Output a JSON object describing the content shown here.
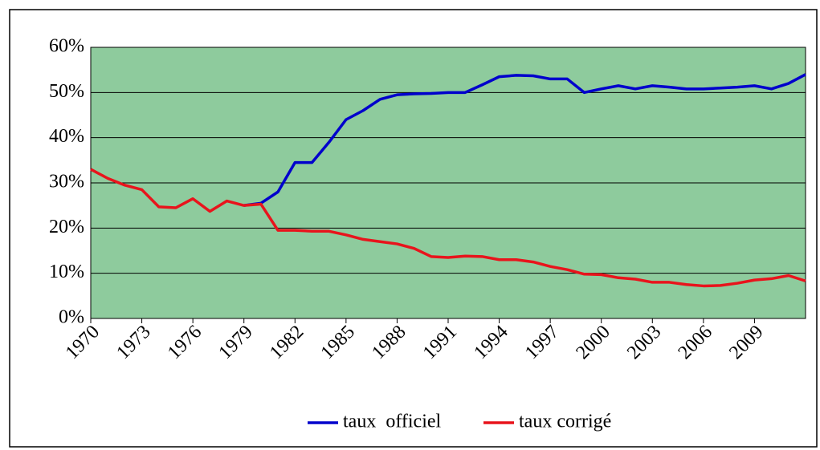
{
  "chart_data": {
    "type": "line",
    "x": [
      1970,
      1971,
      1972,
      1973,
      1974,
      1975,
      1976,
      1977,
      1978,
      1979,
      1980,
      1981,
      1982,
      1983,
      1984,
      1985,
      1986,
      1987,
      1988,
      1989,
      1990,
      1991,
      1992,
      1993,
      1994,
      1995,
      1996,
      1997,
      1998,
      1999,
      2000,
      2001,
      2002,
      2003,
      2004,
      2005,
      2006,
      2007,
      2008,
      2009,
      2010,
      2011,
      2012
    ],
    "series": [
      {
        "name": "taux  officiel",
        "color": "#0000cc",
        "values": [
          null,
          null,
          null,
          null,
          null,
          null,
          null,
          null,
          null,
          25,
          25.5,
          28,
          34.5,
          34.5,
          39,
          44,
          46,
          48.5,
          49.5,
          49.7,
          49.8,
          50,
          50,
          51.7,
          53.5,
          53.8,
          53.7,
          53,
          53,
          50,
          50.8,
          51.5,
          50.8,
          51.5,
          51.2,
          50.8,
          50.8,
          51,
          51.2,
          51.5,
          50.8,
          52,
          54
        ]
      },
      {
        "name": "taux corrigé",
        "color": "#e8141c",
        "values": [
          33,
          31,
          29.5,
          28.5,
          24.7,
          24.5,
          26.5,
          23.7,
          26,
          25,
          25.3,
          19.5,
          19.5,
          19.3,
          19.3,
          18.5,
          17.5,
          17,
          16.5,
          15.5,
          13.7,
          13.5,
          13.8,
          13.7,
          13,
          13,
          12.5,
          11.5,
          10.8,
          9.8,
          9.7,
          9,
          8.7,
          8,
          8,
          7.5,
          7.2,
          7.3,
          7.8,
          8.5,
          8.8,
          9.5,
          8.3
        ]
      }
    ],
    "xlim": [
      1970,
      2012
    ],
    "xticks": [
      1970,
      1973,
      1976,
      1979,
      1982,
      1985,
      1988,
      1991,
      1994,
      1997,
      2000,
      2003,
      2006,
      2009
    ],
    "ylim": [
      0,
      60
    ],
    "yticks": [
      {
        "value": 0,
        "label": "0%"
      },
      {
        "value": 10,
        "label": "10%"
      },
      {
        "value": 20,
        "label": "20%"
      },
      {
        "value": 30,
        "label": "30%"
      },
      {
        "value": 40,
        "label": "40%"
      },
      {
        "value": 50,
        "label": "50%"
      },
      {
        "value": 60,
        "label": "60%"
      }
    ],
    "grid": true,
    "plot_background": "#8ecb9d",
    "legend": "bottom"
  }
}
